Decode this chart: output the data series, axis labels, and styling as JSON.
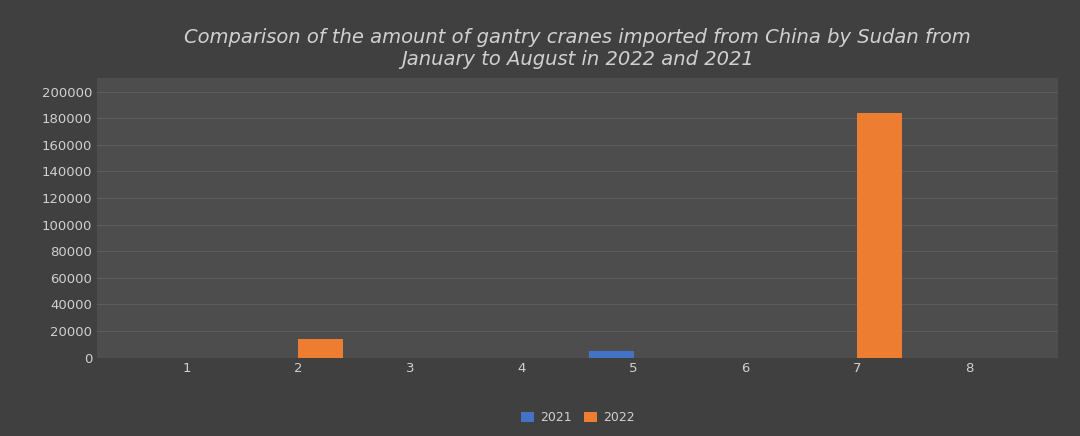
{
  "title": "Comparison of the amount of gantry cranes imported from China by Sudan from\nJanuary to August in 2022 and 2021",
  "months": [
    1,
    2,
    3,
    4,
    5,
    6,
    7,
    8
  ],
  "values_2021": [
    0,
    0,
    0,
    0,
    5000,
    0,
    0,
    0
  ],
  "values_2022": [
    0,
    14000,
    0,
    0,
    0,
    0,
    184000,
    0
  ],
  "color_2021": "#4472C4",
  "color_2022": "#ED7D31",
  "fig_background_color": "#404040",
  "axes_background": "#4D4D4D",
  "text_color": "#D0D0D0",
  "grid_color": "#5F5F5F",
  "ylim": [
    0,
    210000
  ],
  "yticks": [
    0,
    20000,
    40000,
    60000,
    80000,
    100000,
    120000,
    140000,
    160000,
    180000,
    200000
  ],
  "ytick_labels": [
    "0",
    "20000",
    "40000",
    "60000",
    "80000",
    "100000",
    "120000",
    "140000",
    "160000",
    "180000",
    "200000"
  ],
  "bar_width": 0.4,
  "legend_labels": [
    "2021",
    "2022"
  ],
  "title_fontsize": 14,
  "tick_fontsize": 9.5
}
